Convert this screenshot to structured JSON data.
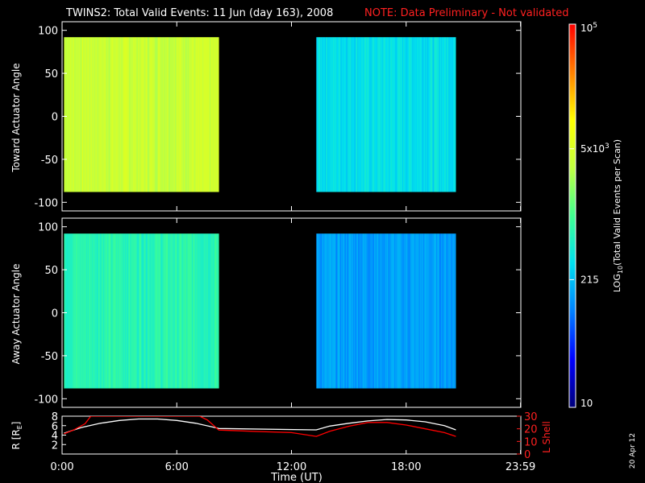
{
  "header": {
    "title": "TWINS2: Total Valid Events: 11 Jun (day 163), 2008",
    "note": "NOTE: Data Preliminary - Not validated",
    "note_color": "#ff2020"
  },
  "stamp": "20 Apr 12",
  "colorbar": {
    "label": "LOG10(Total Valid Events per Scan)",
    "label_main": "LOG",
    "label_sub": "10",
    "label_rest": "(Total Valid  Events per Scan)",
    "tick_labels": [
      "10",
      "215",
      "5x10^3",
      "10^5"
    ],
    "tick_values": [
      10,
      215,
      5000,
      100000
    ],
    "scale": "log",
    "range": [
      10,
      100000
    ],
    "colormap": [
      "#00007a",
      "#0000ff",
      "#0080ff",
      "#00e0f0",
      "#40ff90",
      "#c0ff40",
      "#ffff00",
      "#ff8000",
      "#ff0000"
    ]
  },
  "chart_data": [
    {
      "type": "heatmap",
      "panel": "toward",
      "ylabel": "Toward Actuator Angle",
      "ylim": [
        -110,
        110
      ],
      "yticks": [
        100,
        50,
        0,
        -50,
        -100
      ],
      "xlim": [
        0,
        24
      ],
      "xticks": [
        "0:00",
        "6:00",
        "12:00",
        "18:00",
        "23:59"
      ],
      "angle_range": [
        -88,
        92
      ],
      "intervals": [
        {
          "start_hr": 0.1,
          "end_hr": 8.2,
          "approx_events": 4000
        },
        {
          "start_hr": 13.3,
          "end_hr": 20.6,
          "approx_events": 350
        }
      ]
    },
    {
      "type": "heatmap",
      "panel": "away",
      "ylabel": "Away Actuator Angle",
      "ylim": [
        -110,
        110
      ],
      "yticks": [
        100,
        50,
        0,
        -50,
        -100
      ],
      "xlim": [
        0,
        24
      ],
      "xticks": [
        "0:00",
        "6:00",
        "12:00",
        "18:00",
        "23:59"
      ],
      "angle_range": [
        -88,
        92
      ],
      "intervals": [
        {
          "start_hr": 0.1,
          "end_hr": 8.2,
          "approx_events": 700
        },
        {
          "start_hr": 13.3,
          "end_hr": 20.6,
          "approx_events": 150
        }
      ]
    },
    {
      "type": "line",
      "panel": "ephemeris",
      "xlabel": "Time (UT)",
      "xlim": [
        0,
        24
      ],
      "xticks": [
        "0:00",
        "6:00",
        "12:00",
        "18:00",
        "23:59"
      ],
      "y_left_label": "R [R_E]",
      "y_left_label_main": "R [R",
      "y_left_label_sub": "E",
      "y_left_label_end": "]",
      "y_left_ticks": [
        8,
        6,
        4,
        2
      ],
      "y_left_lim": [
        0,
        8
      ],
      "y_right_label": "L Shell",
      "y_right_ticks": [
        30,
        20,
        10,
        0
      ],
      "y_right_lim": [
        0,
        30
      ],
      "series": [
        {
          "name": "R [R_E]",
          "axis": "left",
          "color": "#ffffff",
          "x": [
            0.1,
            1.0,
            2.0,
            3.0,
            4.0,
            5.0,
            6.0,
            7.0,
            8.0,
            8.2,
            13.3,
            14.0,
            15.0,
            16.0,
            17.0,
            18.0,
            19.0,
            20.0,
            20.6
          ],
          "y": [
            4.4,
            5.6,
            6.5,
            7.1,
            7.4,
            7.4,
            7.1,
            6.5,
            5.6,
            5.4,
            5.1,
            5.9,
            6.5,
            7.0,
            7.3,
            7.2,
            6.8,
            6.0,
            5.1
          ]
        },
        {
          "name": "L Shell",
          "axis": "right",
          "color": "#ff0000",
          "x": [
            0.1,
            0.6,
            1.2,
            1.5,
            7.2,
            7.6,
            8.2,
            10.0,
            12.0,
            13.3,
            14.0,
            15.0,
            16.0,
            17.0,
            18.0,
            19.0,
            20.0,
            20.6
          ],
          "y": [
            16,
            19,
            24,
            30,
            30,
            27,
            19,
            18,
            17,
            14,
            18,
            22,
            25,
            25,
            23,
            20,
            17,
            14
          ]
        }
      ]
    }
  ]
}
